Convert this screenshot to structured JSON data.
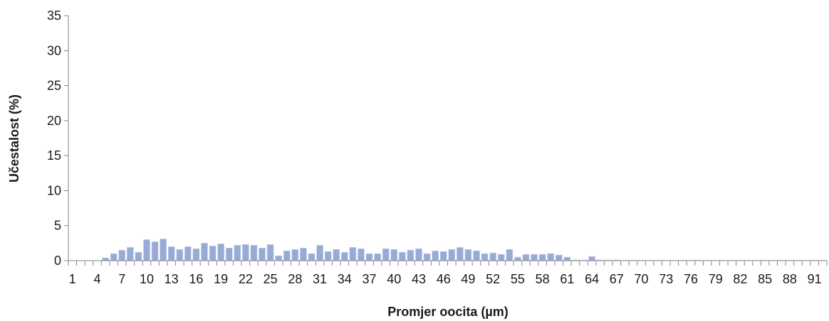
{
  "chart_data": {
    "type": "bar",
    "title": "",
    "xlabel": "Promjer oocita (µm)",
    "ylabel": "Učestalost (%)",
    "ylim": [
      0,
      35
    ],
    "yticks": [
      0,
      5,
      10,
      15,
      20,
      25,
      30,
      35
    ],
    "categories": [
      1,
      2,
      3,
      4,
      5,
      6,
      7,
      8,
      9,
      10,
      11,
      12,
      13,
      14,
      15,
      16,
      17,
      18,
      19,
      20,
      21,
      22,
      23,
      24,
      25,
      26,
      27,
      28,
      29,
      30,
      31,
      32,
      33,
      34,
      35,
      36,
      37,
      38,
      39,
      40,
      41,
      42,
      43,
      44,
      45,
      46,
      47,
      48,
      49,
      50,
      51,
      52,
      53,
      54,
      55,
      56,
      57,
      58,
      59,
      60,
      61,
      62,
      63,
      64,
      65,
      66,
      67,
      68,
      69,
      70,
      71,
      72,
      73,
      74,
      75,
      76,
      77,
      78,
      79,
      80,
      81,
      82,
      83,
      84,
      85,
      86,
      87,
      88,
      89,
      90,
      91,
      92
    ],
    "x_tick_labels": [
      "1",
      "4",
      "7",
      "10",
      "13",
      "16",
      "19",
      "22",
      "25",
      "28",
      "31",
      "34",
      "37",
      "40",
      "43",
      "46",
      "49",
      "52",
      "55",
      "58",
      "61",
      "64",
      "67",
      "70",
      "73",
      "76",
      "79",
      "82",
      "85",
      "88",
      "91"
    ],
    "values": [
      0,
      0,
      0,
      0,
      0.4,
      1.0,
      1.5,
      1.9,
      1.2,
      3.0,
      2.7,
      3.1,
      2.0,
      1.6,
      2.0,
      1.7,
      2.5,
      2.1,
      2.4,
      1.8,
      2.2,
      2.3,
      2.2,
      1.8,
      2.3,
      0.7,
      1.4,
      1.6,
      1.8,
      1.0,
      2.2,
      1.3,
      1.6,
      1.2,
      1.9,
      1.7,
      1.0,
      1.0,
      1.7,
      1.6,
      1.2,
      1.5,
      1.7,
      1.0,
      1.4,
      1.3,
      1.6,
      1.9,
      1.6,
      1.4,
      1.0,
      1.1,
      0.9,
      1.6,
      0.5,
      0.9,
      0.9,
      0.9,
      1.0,
      0.8,
      0.5,
      0.1,
      0.1,
      0.6,
      0.1,
      0.1,
      0.1,
      0.05,
      0.05,
      0.05,
      0.05,
      0.05,
      0.05,
      0.05,
      0.05,
      0.05,
      0.05,
      0.05,
      0.05,
      0.05,
      0.05,
      0.05,
      0.05,
      0.05,
      0.05,
      0.05,
      0.05,
      0.05,
      0.05,
      0.05,
      0.05,
      0.05
    ],
    "grid": false,
    "colors": {
      "bar": "#98abd6",
      "bar_edge": "#c9d3ea",
      "axis": "#868686"
    }
  }
}
